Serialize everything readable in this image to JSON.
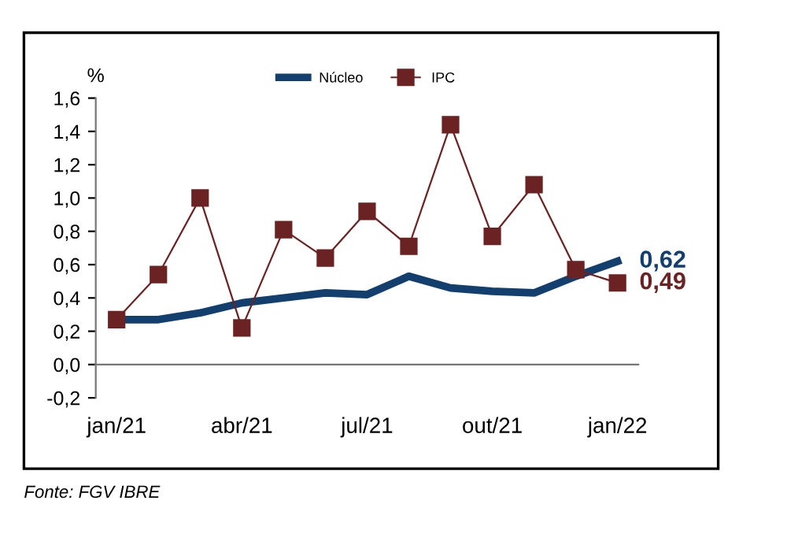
{
  "chart_data": {
    "type": "line",
    "ylabel": "%",
    "categories": [
      "jan/21",
      null,
      null,
      "abr/21",
      null,
      null,
      "jul/21",
      null,
      null,
      "out/21",
      null,
      null,
      "jan/22"
    ],
    "series": [
      {
        "name": "Núcleo",
        "color": "#123f6e",
        "marker": "none",
        "values": [
          0.27,
          0.27,
          0.31,
          0.37,
          0.4,
          0.43,
          0.42,
          0.53,
          0.46,
          0.44,
          0.43,
          0.53,
          0.62
        ],
        "value_labels": [
          null,
          null,
          null,
          null,
          null,
          null,
          null,
          null,
          null,
          null,
          null,
          null,
          "0,62"
        ]
      },
      {
        "name": "IPC",
        "color": "#6b2222",
        "marker": "square",
        "values": [
          0.27,
          0.54,
          1.0,
          0.22,
          0.81,
          0.64,
          0.92,
          0.71,
          1.44,
          0.77,
          1.08,
          0.57,
          0.49
        ],
        "value_labels": [
          null,
          null,
          null,
          null,
          null,
          null,
          null,
          null,
          null,
          null,
          null,
          null,
          "0,49"
        ]
      }
    ],
    "ylim": [
      -0.2,
      1.6
    ],
    "yticks": [
      {
        "value": -0.2,
        "label": "-0,2"
      },
      {
        "value": 0,
        "label": "0,0"
      },
      {
        "value": 0.2,
        "label": "0,2"
      },
      {
        "value": 0.4,
        "label": "0,4"
      },
      {
        "value": 0.6,
        "label": "0,6"
      },
      {
        "value": 0.8,
        "label": "0,8"
      },
      {
        "value": 1.0,
        "label": "1,0"
      },
      {
        "value": 1.2,
        "label": "1,2"
      },
      {
        "value": 1.4,
        "label": "1,4"
      },
      {
        "value": 1.6,
        "label": "1,6"
      }
    ],
    "grid": false,
    "legend": "top",
    "annotations": [
      "Fonte: FGV IBRE"
    ]
  }
}
